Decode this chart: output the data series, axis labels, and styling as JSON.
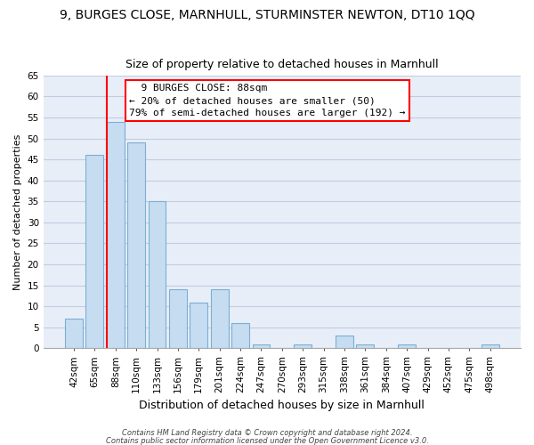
{
  "title": "9, BURGES CLOSE, MARNHULL, STURMINSTER NEWTON, DT10 1QQ",
  "subtitle": "Size of property relative to detached houses in Marnhull",
  "xlabel": "Distribution of detached houses by size in Marnhull",
  "ylabel": "Number of detached properties",
  "bar_labels": [
    "42sqm",
    "65sqm",
    "88sqm",
    "110sqm",
    "133sqm",
    "156sqm",
    "179sqm",
    "201sqm",
    "224sqm",
    "247sqm",
    "270sqm",
    "293sqm",
    "315sqm",
    "338sqm",
    "361sqm",
    "384sqm",
    "407sqm",
    "429sqm",
    "452sqm",
    "475sqm",
    "498sqm"
  ],
  "bar_values": [
    7,
    46,
    54,
    49,
    35,
    14,
    11,
    14,
    6,
    1,
    0,
    1,
    0,
    3,
    1,
    0,
    1,
    0,
    0,
    0,
    1
  ],
  "bar_color": "#c6dcf0",
  "bar_edge_color": "#7bafd4",
  "highlight_bar_index": 2,
  "vline_index": 2,
  "ylim": [
    0,
    65
  ],
  "yticks": [
    0,
    5,
    10,
    15,
    20,
    25,
    30,
    35,
    40,
    45,
    50,
    55,
    60,
    65
  ],
  "annotation_title": "9 BURGES CLOSE: 88sqm",
  "annotation_line1": "← 20% of detached houses are smaller (50)",
  "annotation_line2": "79% of semi-detached houses are larger (192) →",
  "footer1": "Contains HM Land Registry data © Crown copyright and database right 2024.",
  "footer2": "Contains public sector information licensed under the Open Government Licence v3.0.",
  "background_color": "#ffffff",
  "plot_bg_color": "#e8eef8",
  "grid_color": "#c0cce0",
  "title_fontsize": 10,
  "subtitle_fontsize": 9,
  "xlabel_fontsize": 9,
  "ylabel_fontsize": 8,
  "tick_fontsize": 7.5,
  "annotation_fontsize": 8,
  "footer_fontsize": 6
}
